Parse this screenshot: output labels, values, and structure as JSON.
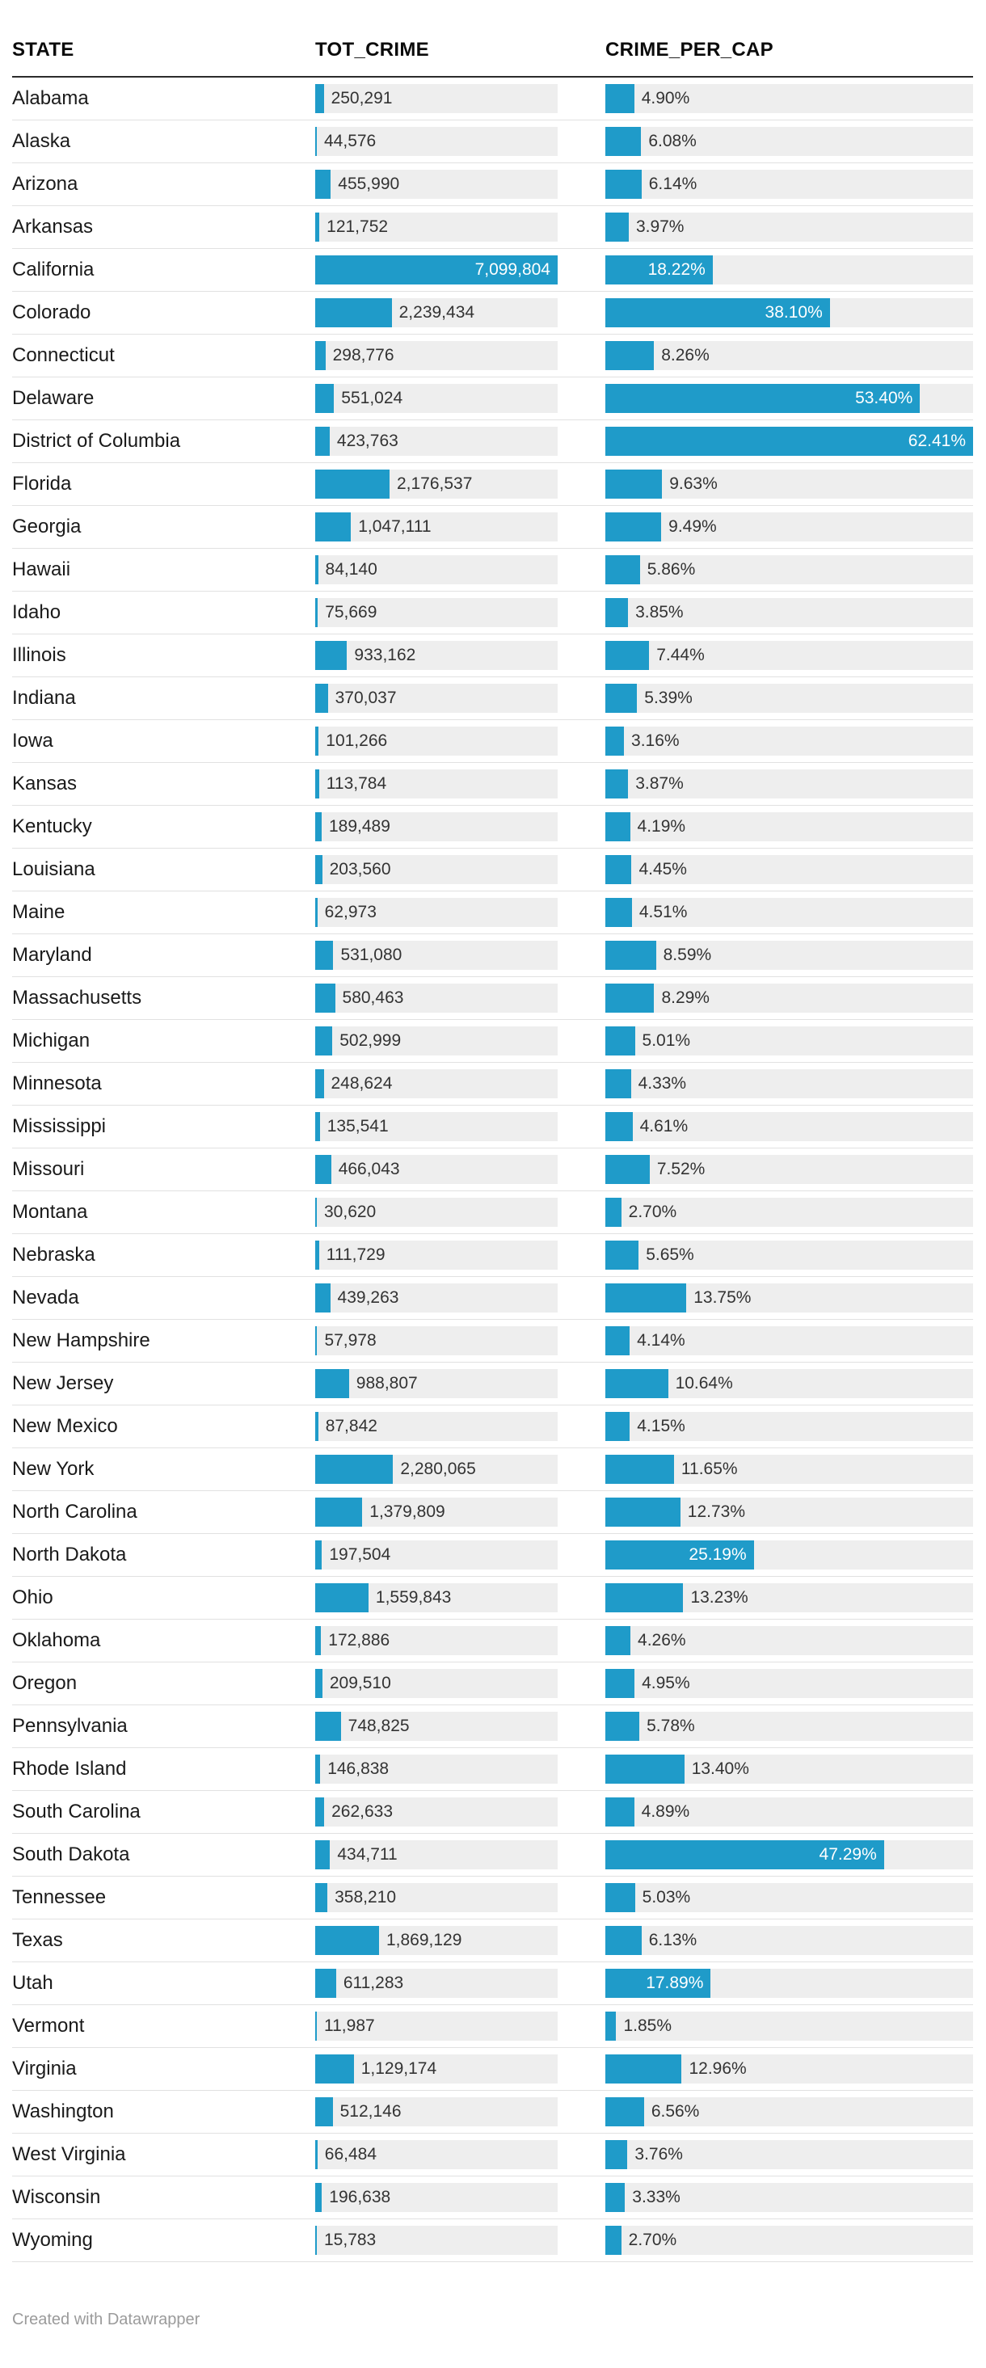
{
  "header": {
    "columns": [
      {
        "label": "STATE"
      },
      {
        "label": "TOT_CRIME"
      },
      {
        "label": "CRIME_PER_CAP"
      }
    ]
  },
  "footer": {
    "credit": "Created with Datawrapper"
  },
  "colors": {
    "bar": "#1f9bc9",
    "track": "#eeeeee",
    "bar_label_inside": "#ffffff",
    "bar_label_outside": "#333333"
  },
  "chart_data": {
    "type": "table",
    "title": "",
    "columns": [
      "STATE",
      "TOT_CRIME",
      "CRIME_PER_CAP"
    ],
    "bar_style": "horizontal bars on gray track, label inside bar (white) when bar is long enough, otherwise dark label right of bar",
    "max": {
      "tot_crime": 7099804,
      "crime_per_cap": 62.41
    },
    "rows": [
      {
        "state": "Alabama",
        "tot_crime": 250291,
        "tot_crime_label": "250,291",
        "crime_per_cap": 4.9,
        "crime_per_cap_label": "4.90%"
      },
      {
        "state": "Alaska",
        "tot_crime": 44576,
        "tot_crime_label": "44,576",
        "crime_per_cap": 6.08,
        "crime_per_cap_label": "6.08%"
      },
      {
        "state": "Arizona",
        "tot_crime": 455990,
        "tot_crime_label": "455,990",
        "crime_per_cap": 6.14,
        "crime_per_cap_label": "6.14%"
      },
      {
        "state": "Arkansas",
        "tot_crime": 121752,
        "tot_crime_label": "121,752",
        "crime_per_cap": 3.97,
        "crime_per_cap_label": "3.97%"
      },
      {
        "state": "California",
        "tot_crime": 7099804,
        "tot_crime_label": "7,099,804",
        "crime_per_cap": 18.22,
        "crime_per_cap_label": "18.22%"
      },
      {
        "state": "Colorado",
        "tot_crime": 2239434,
        "tot_crime_label": "2,239,434",
        "crime_per_cap": 38.1,
        "crime_per_cap_label": "38.10%"
      },
      {
        "state": "Connecticut",
        "tot_crime": 298776,
        "tot_crime_label": "298,776",
        "crime_per_cap": 8.26,
        "crime_per_cap_label": "8.26%"
      },
      {
        "state": "Delaware",
        "tot_crime": 551024,
        "tot_crime_label": "551,024",
        "crime_per_cap": 53.4,
        "crime_per_cap_label": "53.40%"
      },
      {
        "state": "District of Columbia",
        "tot_crime": 423763,
        "tot_crime_label": "423,763",
        "crime_per_cap": 62.41,
        "crime_per_cap_label": "62.41%"
      },
      {
        "state": "Florida",
        "tot_crime": 2176537,
        "tot_crime_label": "2,176,537",
        "crime_per_cap": 9.63,
        "crime_per_cap_label": "9.63%"
      },
      {
        "state": "Georgia",
        "tot_crime": 1047111,
        "tot_crime_label": "1,047,111",
        "crime_per_cap": 9.49,
        "crime_per_cap_label": "9.49%"
      },
      {
        "state": "Hawaii",
        "tot_crime": 84140,
        "tot_crime_label": "84,140",
        "crime_per_cap": 5.86,
        "crime_per_cap_label": "5.86%"
      },
      {
        "state": "Idaho",
        "tot_crime": 75669,
        "tot_crime_label": "75,669",
        "crime_per_cap": 3.85,
        "crime_per_cap_label": "3.85%"
      },
      {
        "state": "Illinois",
        "tot_crime": 933162,
        "tot_crime_label": "933,162",
        "crime_per_cap": 7.44,
        "crime_per_cap_label": "7.44%"
      },
      {
        "state": "Indiana",
        "tot_crime": 370037,
        "tot_crime_label": "370,037",
        "crime_per_cap": 5.39,
        "crime_per_cap_label": "5.39%"
      },
      {
        "state": "Iowa",
        "tot_crime": 101266,
        "tot_crime_label": "101,266",
        "crime_per_cap": 3.16,
        "crime_per_cap_label": "3.16%"
      },
      {
        "state": "Kansas",
        "tot_crime": 113784,
        "tot_crime_label": "113,784",
        "crime_per_cap": 3.87,
        "crime_per_cap_label": "3.87%"
      },
      {
        "state": "Kentucky",
        "tot_crime": 189489,
        "tot_crime_label": "189,489",
        "crime_per_cap": 4.19,
        "crime_per_cap_label": "4.19%"
      },
      {
        "state": "Louisiana",
        "tot_crime": 203560,
        "tot_crime_label": "203,560",
        "crime_per_cap": 4.45,
        "crime_per_cap_label": "4.45%"
      },
      {
        "state": "Maine",
        "tot_crime": 62973,
        "tot_crime_label": "62,973",
        "crime_per_cap": 4.51,
        "crime_per_cap_label": "4.51%"
      },
      {
        "state": "Maryland",
        "tot_crime": 531080,
        "tot_crime_label": "531,080",
        "crime_per_cap": 8.59,
        "crime_per_cap_label": "8.59%"
      },
      {
        "state": "Massachusetts",
        "tot_crime": 580463,
        "tot_crime_label": "580,463",
        "crime_per_cap": 8.29,
        "crime_per_cap_label": "8.29%"
      },
      {
        "state": "Michigan",
        "tot_crime": 502999,
        "tot_crime_label": "502,999",
        "crime_per_cap": 5.01,
        "crime_per_cap_label": "5.01%"
      },
      {
        "state": "Minnesota",
        "tot_crime": 248624,
        "tot_crime_label": "248,624",
        "crime_per_cap": 4.33,
        "crime_per_cap_label": "4.33%"
      },
      {
        "state": "Mississippi",
        "tot_crime": 135541,
        "tot_crime_label": "135,541",
        "crime_per_cap": 4.61,
        "crime_per_cap_label": "4.61%"
      },
      {
        "state": "Missouri",
        "tot_crime": 466043,
        "tot_crime_label": "466,043",
        "crime_per_cap": 7.52,
        "crime_per_cap_label": "7.52%"
      },
      {
        "state": "Montana",
        "tot_crime": 30620,
        "tot_crime_label": "30,620",
        "crime_per_cap": 2.7,
        "crime_per_cap_label": "2.70%"
      },
      {
        "state": "Nebraska",
        "tot_crime": 111729,
        "tot_crime_label": "111,729",
        "crime_per_cap": 5.65,
        "crime_per_cap_label": "5.65%"
      },
      {
        "state": "Nevada",
        "tot_crime": 439263,
        "tot_crime_label": "439,263",
        "crime_per_cap": 13.75,
        "crime_per_cap_label": "13.75%"
      },
      {
        "state": "New Hampshire",
        "tot_crime": 57978,
        "tot_crime_label": "57,978",
        "crime_per_cap": 4.14,
        "crime_per_cap_label": "4.14%"
      },
      {
        "state": "New Jersey",
        "tot_crime": 988807,
        "tot_crime_label": "988,807",
        "crime_per_cap": 10.64,
        "crime_per_cap_label": "10.64%"
      },
      {
        "state": "New Mexico",
        "tot_crime": 87842,
        "tot_crime_label": "87,842",
        "crime_per_cap": 4.15,
        "crime_per_cap_label": "4.15%"
      },
      {
        "state": "New York",
        "tot_crime": 2280065,
        "tot_crime_label": "2,280,065",
        "crime_per_cap": 11.65,
        "crime_per_cap_label": "11.65%"
      },
      {
        "state": "North Carolina",
        "tot_crime": 1379809,
        "tot_crime_label": "1,379,809",
        "crime_per_cap": 12.73,
        "crime_per_cap_label": "12.73%"
      },
      {
        "state": "North Dakota",
        "tot_crime": 197504,
        "tot_crime_label": "197,504",
        "crime_per_cap": 25.19,
        "crime_per_cap_label": "25.19%"
      },
      {
        "state": "Ohio",
        "tot_crime": 1559843,
        "tot_crime_label": "1,559,843",
        "crime_per_cap": 13.23,
        "crime_per_cap_label": "13.23%"
      },
      {
        "state": "Oklahoma",
        "tot_crime": 172886,
        "tot_crime_label": "172,886",
        "crime_per_cap": 4.26,
        "crime_per_cap_label": "4.26%"
      },
      {
        "state": "Oregon",
        "tot_crime": 209510,
        "tot_crime_label": "209,510",
        "crime_per_cap": 4.95,
        "crime_per_cap_label": "4.95%"
      },
      {
        "state": "Pennsylvania",
        "tot_crime": 748825,
        "tot_crime_label": "748,825",
        "crime_per_cap": 5.78,
        "crime_per_cap_label": "5.78%"
      },
      {
        "state": "Rhode Island",
        "tot_crime": 146838,
        "tot_crime_label": "146,838",
        "crime_per_cap": 13.4,
        "crime_per_cap_label": "13.40%"
      },
      {
        "state": "South Carolina",
        "tot_crime": 262633,
        "tot_crime_label": "262,633",
        "crime_per_cap": 4.89,
        "crime_per_cap_label": "4.89%"
      },
      {
        "state": "South Dakota",
        "tot_crime": 434711,
        "tot_crime_label": "434,711",
        "crime_per_cap": 47.29,
        "crime_per_cap_label": "47.29%"
      },
      {
        "state": "Tennessee",
        "tot_crime": 358210,
        "tot_crime_label": "358,210",
        "crime_per_cap": 5.03,
        "crime_per_cap_label": "5.03%"
      },
      {
        "state": "Texas",
        "tot_crime": 1869129,
        "tot_crime_label": "1,869,129",
        "crime_per_cap": 6.13,
        "crime_per_cap_label": "6.13%"
      },
      {
        "state": "Utah",
        "tot_crime": 611283,
        "tot_crime_label": "611,283",
        "crime_per_cap": 17.89,
        "crime_per_cap_label": "17.89%"
      },
      {
        "state": "Vermont",
        "tot_crime": 11987,
        "tot_crime_label": "11,987",
        "crime_per_cap": 1.85,
        "crime_per_cap_label": "1.85%"
      },
      {
        "state": "Virginia",
        "tot_crime": 1129174,
        "tot_crime_label": "1,129,174",
        "crime_per_cap": 12.96,
        "crime_per_cap_label": "12.96%"
      },
      {
        "state": "Washington",
        "tot_crime": 512146,
        "tot_crime_label": "512,146",
        "crime_per_cap": 6.56,
        "crime_per_cap_label": "6.56%"
      },
      {
        "state": "West Virginia",
        "tot_crime": 66484,
        "tot_crime_label": "66,484",
        "crime_per_cap": 3.76,
        "crime_per_cap_label": "3.76%"
      },
      {
        "state": "Wisconsin",
        "tot_crime": 196638,
        "tot_crime_label": "196,638",
        "crime_per_cap": 3.33,
        "crime_per_cap_label": "3.33%"
      },
      {
        "state": "Wyoming",
        "tot_crime": 15783,
        "tot_crime_label": "15,783",
        "crime_per_cap": 2.7,
        "crime_per_cap_label": "2.70%"
      }
    ]
  }
}
